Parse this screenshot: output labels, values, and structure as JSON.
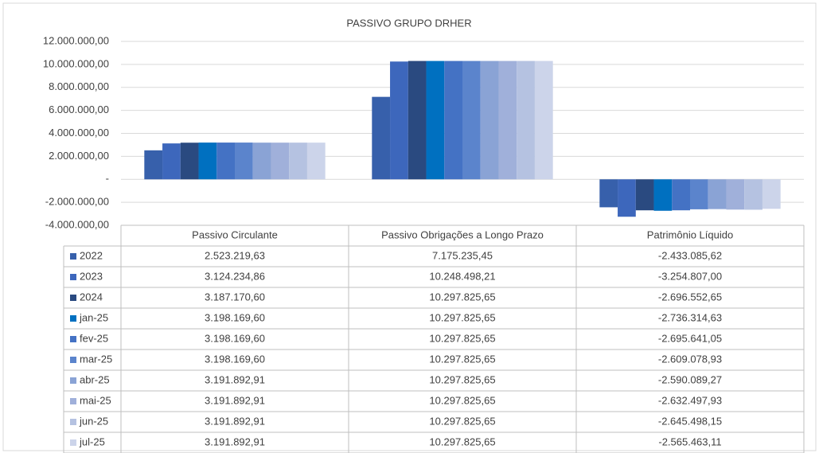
{
  "chart_data": {
    "type": "bar",
    "title": "PASSIVO GRUPO DRHER",
    "categories": [
      "Passivo Circulante",
      "Passivo Obrigações a Longo Prazo",
      "Patrimônio Líquido"
    ],
    "ylim": [
      -4000000,
      12000000
    ],
    "yticks": [
      {
        "value": -4000000,
        "label": "-4.000.000,00"
      },
      {
        "value": -2000000,
        "label": "-2.000.000,00"
      },
      {
        "value": 0,
        "label": "-"
      },
      {
        "value": 2000000,
        "label": "2.000.000,00"
      },
      {
        "value": 4000000,
        "label": "4.000.000,00"
      },
      {
        "value": 6000000,
        "label": "6.000.000,00"
      },
      {
        "value": 8000000,
        "label": "8.000.000,00"
      },
      {
        "value": 10000000,
        "label": "10.000.000,00"
      },
      {
        "value": 12000000,
        "label": "12.000.000,00"
      }
    ],
    "grid": true,
    "series": [
      {
        "name": "2022",
        "color": "#3760ab",
        "values": [
          2523219.63,
          7175235.45,
          -2433085.62
        ],
        "value_labels": [
          "2.523.219,63",
          "7.175.235,45",
          "-2.433.085,62"
        ]
      },
      {
        "name": "2023",
        "color": "#3d67bc",
        "values": [
          3124234.86,
          10248498.21,
          -3254807.0
        ],
        "value_labels": [
          "3.124.234,86",
          "10.248.498,21",
          "-3.254.807,00"
        ]
      },
      {
        "name": "2024",
        "color": "#2a4a80",
        "values": [
          3187170.6,
          10297825.65,
          -2696552.65
        ],
        "value_labels": [
          "3.187.170,60",
          "10.297.825,65",
          "-2.696.552,65"
        ]
      },
      {
        "name": "jan-25",
        "color": "#0070c0",
        "values": [
          3198169.6,
          10297825.65,
          -2736314.63
        ],
        "value_labels": [
          "3.198.169,60",
          "10.297.825,65",
          "-2.736.314,63"
        ]
      },
      {
        "name": "fev-25",
        "color": "#4472c4",
        "values": [
          3198169.6,
          10297825.65,
          -2695641.05
        ],
        "value_labels": [
          "3.198.169,60",
          "10.297.825,65",
          "-2.695.641,05"
        ]
      },
      {
        "name": "mar-25",
        "color": "#5b84cc",
        "values": [
          3198169.6,
          10297825.65,
          -2609078.93
        ],
        "value_labels": [
          "3.198.169,60",
          "10.297.825,65",
          "-2.609.078,93"
        ]
      },
      {
        "name": "abr-25",
        "color": "#8aa3d5",
        "values": [
          3191892.91,
          10297825.65,
          -2590089.27
        ],
        "value_labels": [
          "3.191.892,91",
          "10.297.825,65",
          "-2.590.089,27"
        ]
      },
      {
        "name": "mai-25",
        "color": "#a0b0da",
        "values": [
          3191892.91,
          10297825.65,
          -2632497.93
        ],
        "value_labels": [
          "3.191.892,91",
          "10.297.825,65",
          "-2.632.497,93"
        ]
      },
      {
        "name": "jun-25",
        "color": "#b5c2e1",
        "values": [
          3191892.91,
          10297825.65,
          -2645498.15
        ],
        "value_labels": [
          "3.191.892,91",
          "10.297.825,65",
          "-2.645.498,15"
        ]
      },
      {
        "name": "jul-25",
        "color": "#ccd4ea",
        "values": [
          3191892.91,
          10297825.65,
          -2565463.11
        ],
        "value_labels": [
          "3.191.892,91",
          "10.297.825,65",
          "-2.565.463,11"
        ]
      }
    ]
  }
}
